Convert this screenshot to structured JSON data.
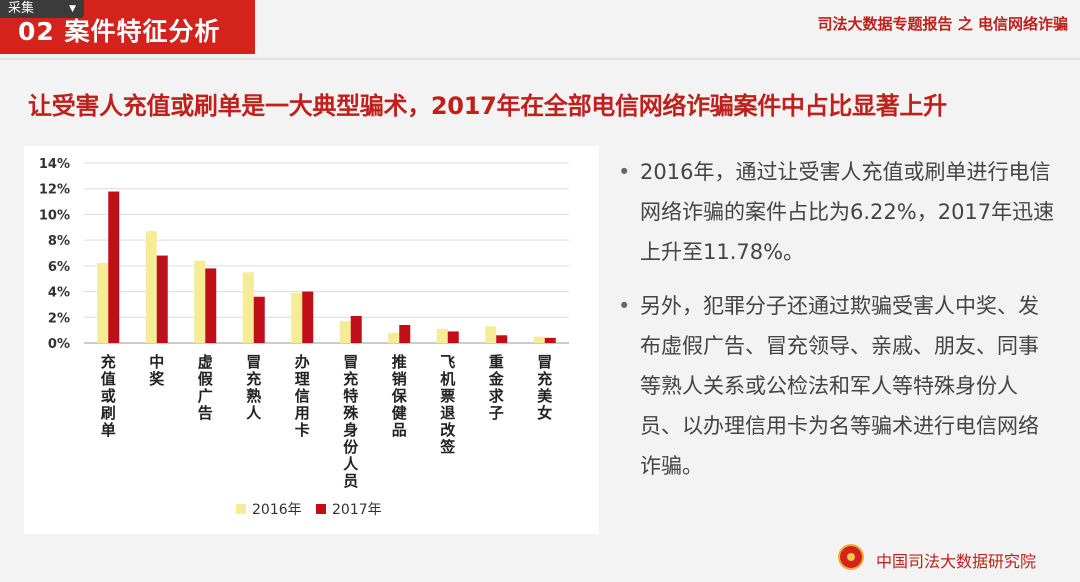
{
  "header": {
    "tab_label": "采集",
    "section_title": "02  案件特征分析",
    "report_title": "司法大数据专题报告 之 电信网络诈骗"
  },
  "headline": "让受害人充值或刷单是一大典型骗术，2017年在全部电信网络诈骗案件中占比显著上升",
  "bullets": [
    "2016年，通过让受害人充值或刷单进行电信网络诈骗的案件占比为6.22%，2017年迅速上升至11.78%。",
    "另外，犯罪分子还通过欺骗受害人中奖、发布虚假广告、冒充领导、亲戚、朋友、同事等熟人关系或公检法和军人等特殊身份人员、以办理信用卡为名等骗术进行电信网络诈骗。"
  ],
  "footer": {
    "org": "中国司法大数据研究院"
  },
  "colors": {
    "series_2016": "#f5ec95",
    "series_2017": "#c00f18",
    "accent": "#d4231d"
  },
  "chart_data": {
    "type": "bar",
    "categories": [
      "充值或刷单",
      "中奖",
      "虚假广告",
      "冒充熟人",
      "办理信用卡",
      "冒充特殊身份人员",
      "推销保健品",
      "飞机票退改签",
      "重金求子",
      "冒充美女"
    ],
    "series": [
      {
        "name": "2016年",
        "values": [
          6.22,
          8.7,
          6.4,
          5.5,
          3.9,
          1.7,
          0.8,
          1.1,
          1.3,
          0.5
        ]
      },
      {
        "name": "2017年",
        "values": [
          11.78,
          6.8,
          5.8,
          3.6,
          4.0,
          2.1,
          1.4,
          0.9,
          0.6,
          0.4
        ]
      }
    ],
    "ylim": [
      0,
      14
    ],
    "yticks": [
      "0%",
      "2%",
      "4%",
      "6%",
      "8%",
      "10%",
      "12%",
      "14%"
    ],
    "grid": true,
    "legend": "bottom"
  }
}
